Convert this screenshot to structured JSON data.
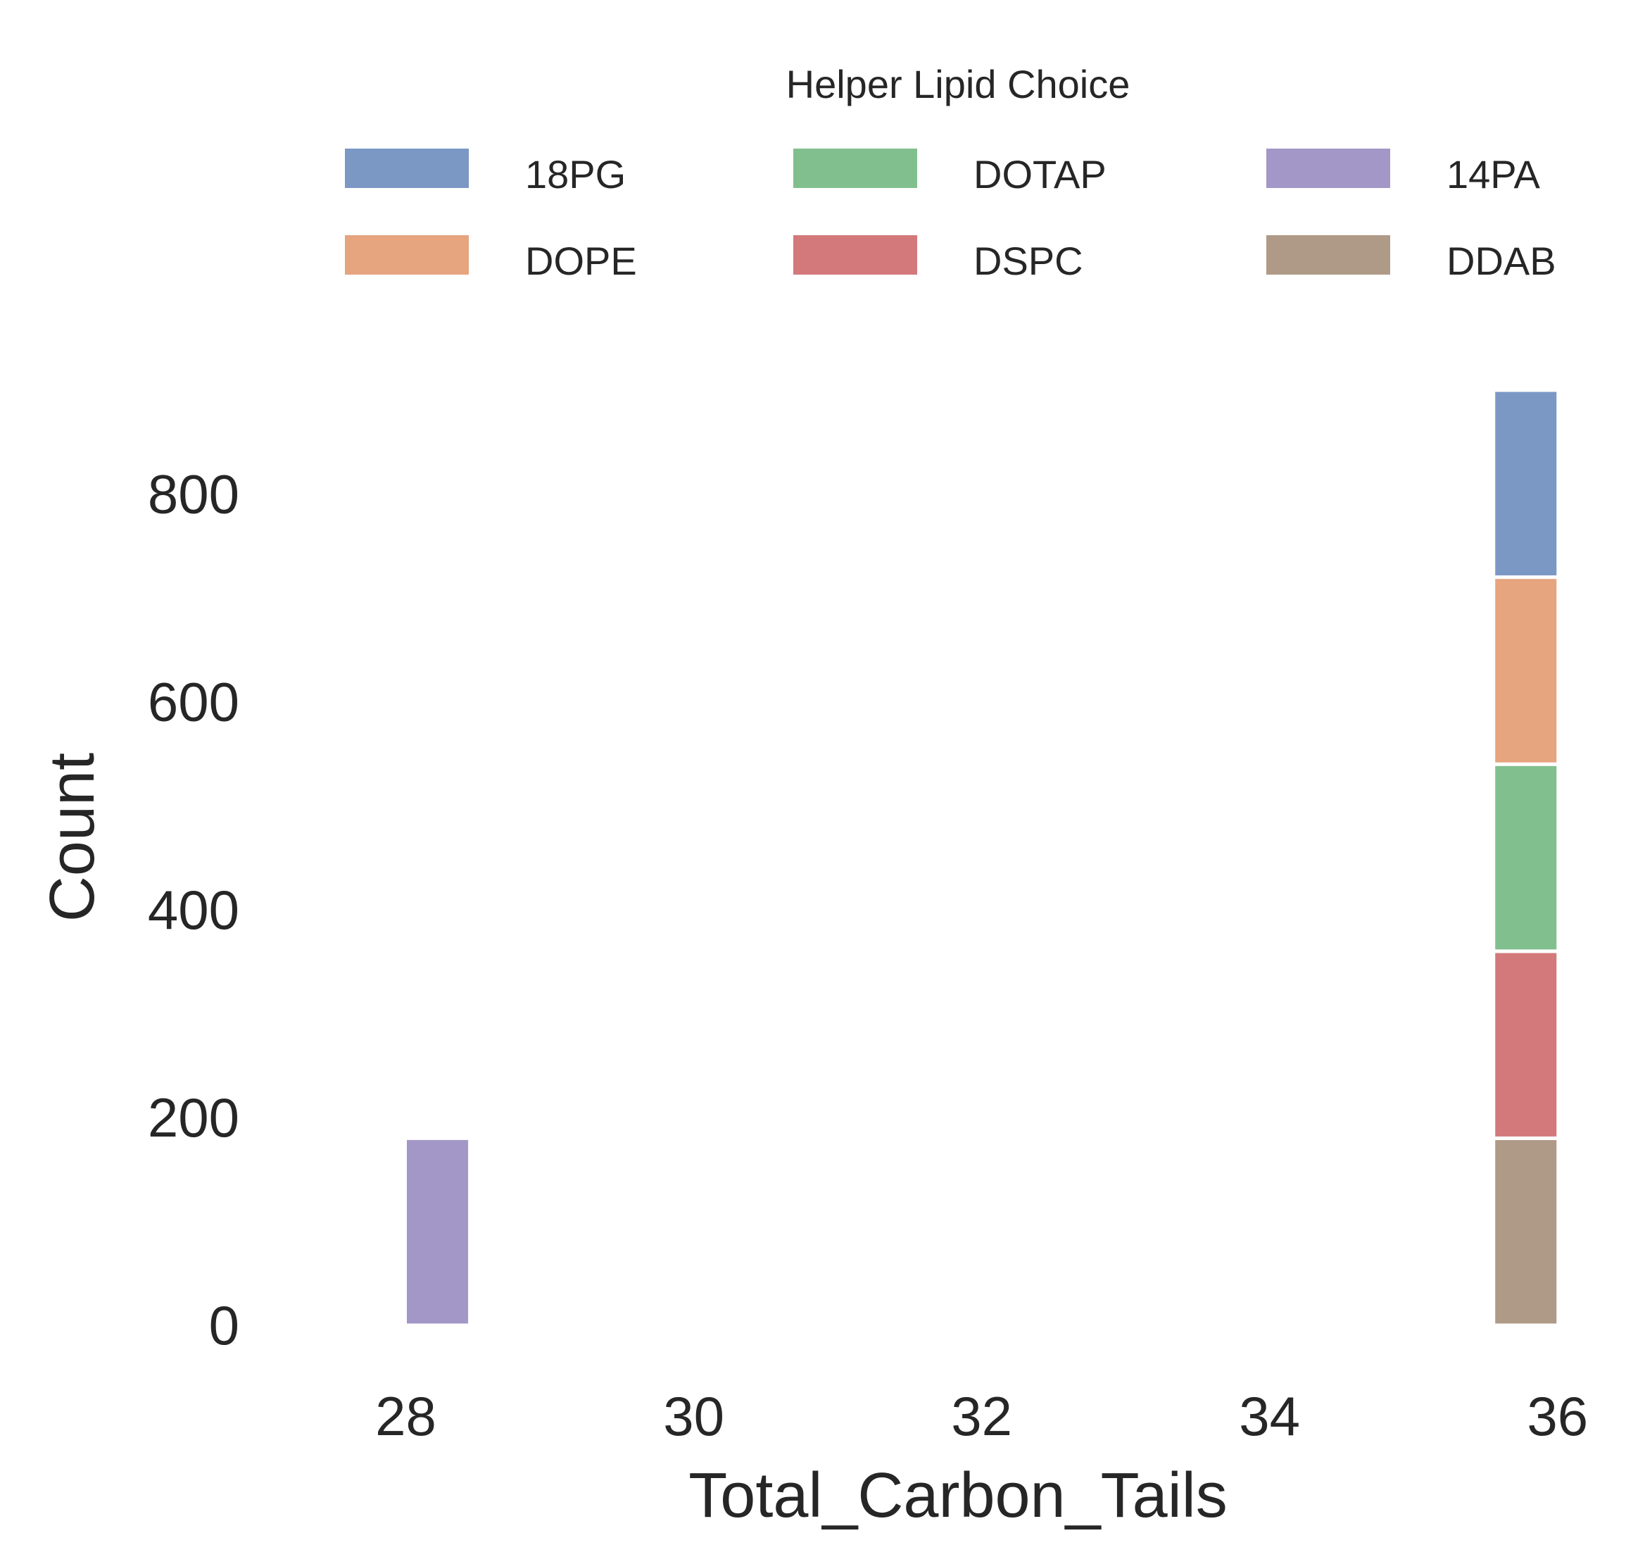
{
  "chart_data": {
    "type": "bar",
    "stacked": true,
    "xlabel": "Total_Carbon_Tails",
    "ylabel": "Count",
    "xlim": [
      27.0,
      36.5
    ],
    "ylim": [
      0,
      900
    ],
    "xticks": [
      28,
      30,
      32,
      34,
      36
    ],
    "yticks": [
      0,
      200,
      400,
      600,
      800
    ],
    "grid": false,
    "bin_width": 0.45,
    "legend": {
      "title": "Helper Lipid Choice",
      "position": "top",
      "columns": 3
    },
    "series": [
      {
        "name": "18PG",
        "color": "#7b98c5",
        "bins": [
          {
            "x": 35.78,
            "count": 180
          }
        ]
      },
      {
        "name": "DOPE",
        "color": "#e6a47f",
        "bins": [
          {
            "x": 35.78,
            "count": 180
          }
        ]
      },
      {
        "name": "DOTAP",
        "color": "#82bf8e",
        "bins": [
          {
            "x": 35.78,
            "count": 180
          }
        ]
      },
      {
        "name": "DSPC",
        "color": "#d3797b",
        "bins": [
          {
            "x": 35.78,
            "count": 180
          }
        ]
      },
      {
        "name": "14PA",
        "color": "#a397c8",
        "bins": [
          {
            "x": 28.22,
            "count": 180
          }
        ]
      },
      {
        "name": "DDAB",
        "color": "#af9a87",
        "bins": [
          {
            "x": 35.78,
            "count": 180
          }
        ]
      }
    ],
    "stack_order_bottom_to_top": [
      "DDAB",
      "DSPC",
      "DOTAP",
      "DOPE",
      "18PG"
    ]
  }
}
